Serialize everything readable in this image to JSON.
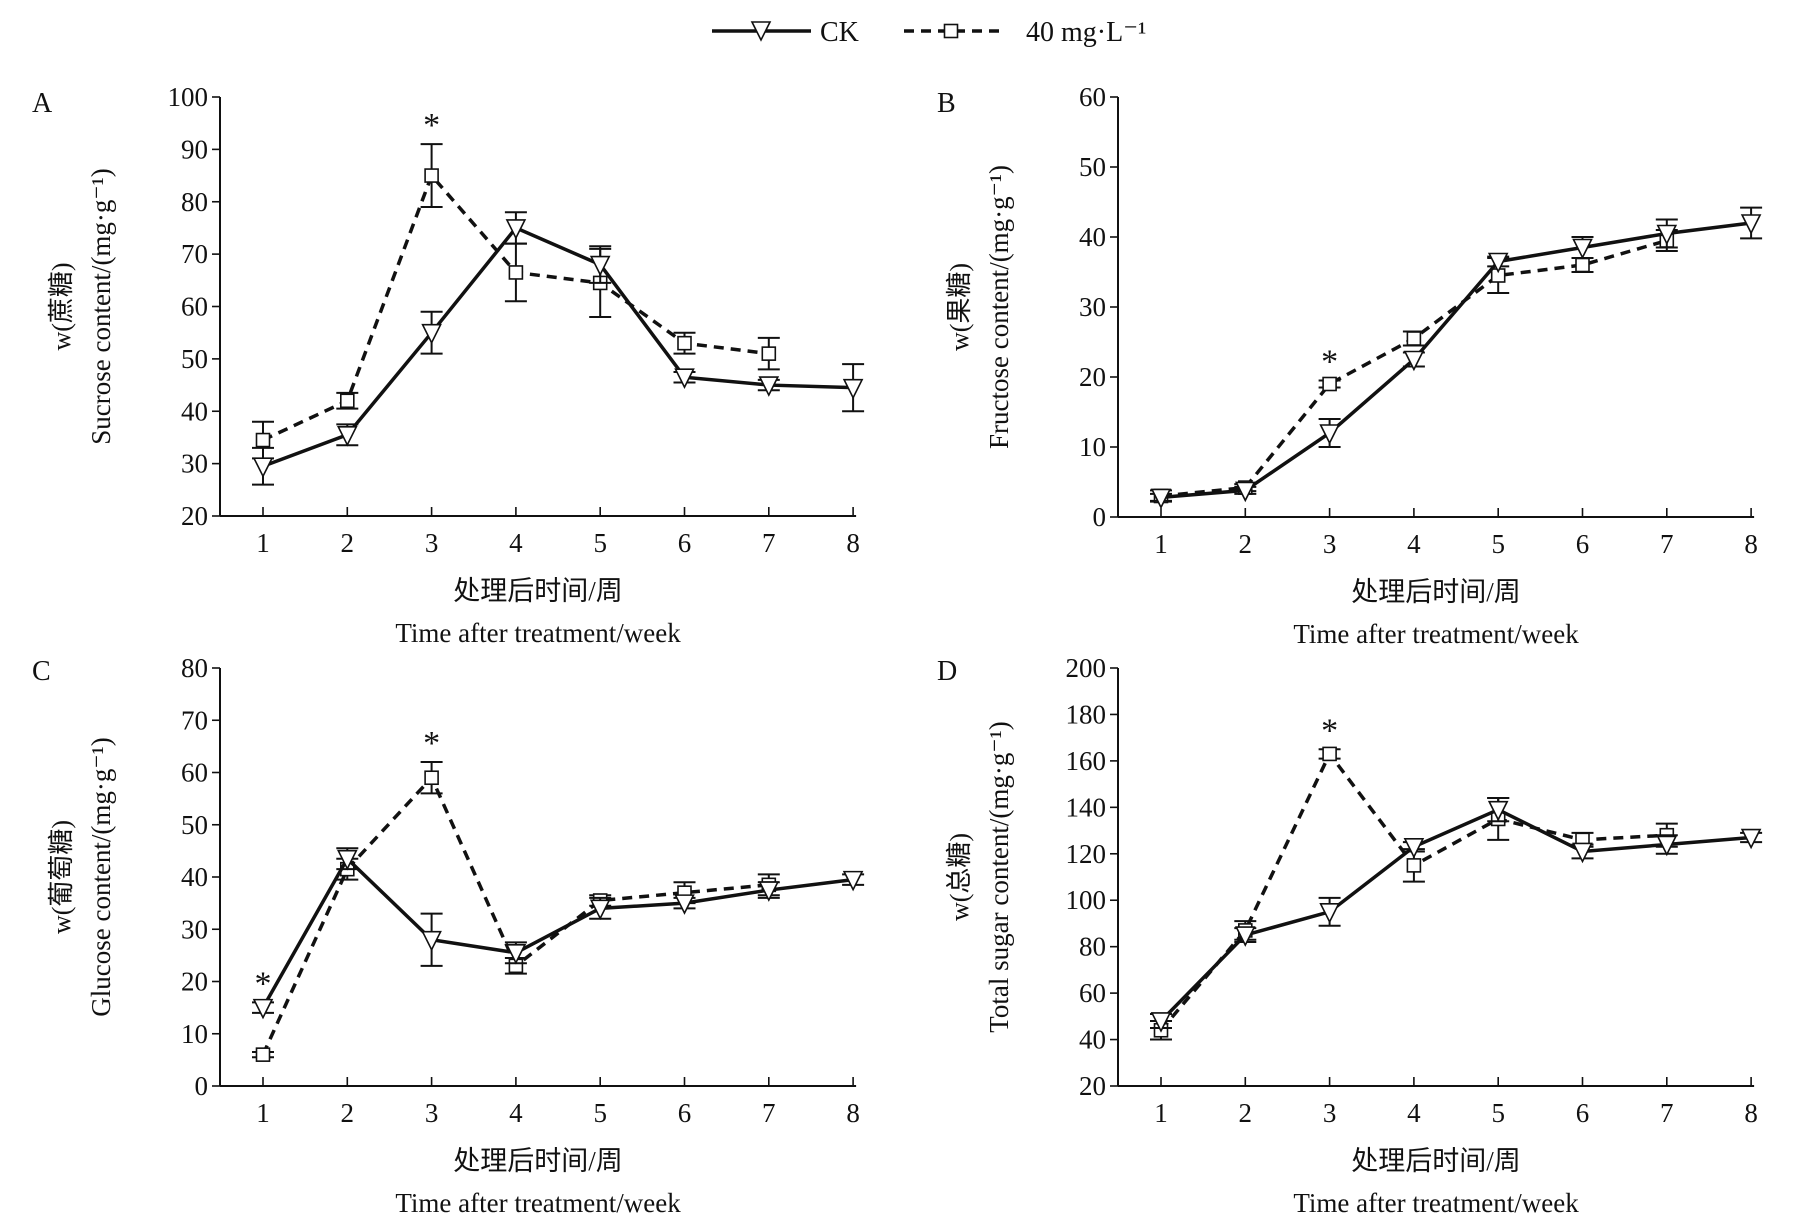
{
  "legend": {
    "series": [
      {
        "name": "CK",
        "style": "solid",
        "marker": "triangle-down"
      },
      {
        "name": "40 mg·L⁻¹",
        "style": "dashed",
        "marker": "square"
      }
    ],
    "placement": "top-center"
  },
  "chart_data": [
    {
      "type": "line",
      "panel": "A",
      "ylabel_cn": "w(蔗糖)",
      "ylabel": "Sucrose content/(mg·g⁻¹)",
      "xlabel_cn": "处理后时间/周",
      "xlabel": "Time after treatment/week",
      "x": [
        1,
        2,
        3,
        4,
        5,
        6,
        7,
        8
      ],
      "ylim": [
        20,
        100
      ],
      "yticks": [
        20,
        30,
        40,
        50,
        60,
        70,
        80,
        90,
        100
      ],
      "significance": [
        3
      ],
      "significance_mark": "*",
      "series": [
        {
          "name": "CK",
          "values": [
            29.5,
            35.5,
            55,
            75,
            68,
            46.5,
            45,
            44.5
          ],
          "errors": [
            3.5,
            2,
            4,
            3,
            3.5,
            1,
            1,
            4.5
          ]
        },
        {
          "name": "40 mg·L⁻¹",
          "values": [
            34.5,
            42,
            85,
            66.5,
            64.5,
            53,
            51,
            null
          ],
          "errors": [
            3.5,
            1.5,
            6,
            5.5,
            6.5,
            2,
            3,
            null
          ]
        }
      ]
    },
    {
      "type": "line",
      "panel": "B",
      "ylabel_cn": "w(果糖)",
      "ylabel": "Fructose content/(mg·g⁻¹)",
      "xlabel_cn": "处理后时间/周",
      "xlabel": "Time after treatment/week",
      "x": [
        1,
        2,
        3,
        4,
        5,
        6,
        7,
        8
      ],
      "ylim": [
        0,
        60
      ],
      "yticks": [
        0,
        10,
        20,
        30,
        40,
        50,
        60
      ],
      "significance": [
        3
      ],
      "significance_mark": "*",
      "series": [
        {
          "name": "CK",
          "values": [
            2.8,
            3.8,
            12,
            22.5,
            36.5,
            38.5,
            40.5,
            42
          ],
          "errors": [
            0.5,
            0.5,
            2,
            1,
            0.7,
            1.5,
            2,
            2.2
          ]
        },
        {
          "name": "40 mg·L⁻¹",
          "values": [
            3,
            4.2,
            19,
            25.5,
            34.5,
            36,
            39.5,
            null
          ],
          "errors": [
            0.8,
            0.5,
            0.5,
            1,
            2.5,
            1,
            1.5,
            null
          ]
        }
      ]
    },
    {
      "type": "line",
      "panel": "C",
      "ylabel_cn": "w(葡萄糖)",
      "ylabel": "Glucose content/(mg·g⁻¹)",
      "xlabel_cn": "处理后时间/周",
      "xlabel": "Time after treatment/week",
      "x": [
        1,
        2,
        3,
        4,
        5,
        6,
        7,
        8
      ],
      "ylim": [
        0,
        80
      ],
      "yticks": [
        0,
        10,
        20,
        30,
        40,
        50,
        60,
        70,
        80
      ],
      "significance": [
        1,
        3
      ],
      "significance_mark": "*",
      "series": [
        {
          "name": "CK",
          "values": [
            15,
            43.5,
            28,
            25.5,
            34,
            35,
            37.5,
            39.5
          ],
          "errors": [
            1,
            2,
            5,
            2,
            2,
            1,
            1.5,
            1
          ]
        },
        {
          "name": "40 mg·L⁻¹",
          "values": [
            6,
            41.5,
            59,
            23,
            35.5,
            37,
            38.5,
            null
          ],
          "errors": [
            0.5,
            2,
            3,
            1.5,
            1,
            2,
            2,
            null
          ]
        }
      ]
    },
    {
      "type": "line",
      "panel": "D",
      "ylabel_cn": "w(总糖)",
      "ylabel": "Total sugar content/(mg·g⁻¹)",
      "xlabel_cn": "处理后时间/周",
      "xlabel": "Time after treatment/week",
      "x": [
        1,
        2,
        3,
        4,
        5,
        6,
        7,
        8
      ],
      "ylim": [
        20,
        200
      ],
      "yticks": [
        20,
        40,
        60,
        80,
        100,
        120,
        140,
        160,
        180,
        200
      ],
      "significance": [
        3
      ],
      "significance_mark": "*",
      "series": [
        {
          "name": "CK",
          "values": [
            48,
            85,
            95,
            123,
            139,
            121,
            124,
            127
          ],
          "errors": [
            3,
            3,
            6,
            2,
            5,
            3,
            4,
            2
          ]
        },
        {
          "name": "40 mg·L⁻¹",
          "values": [
            44,
            87,
            163,
            115,
            135,
            126,
            128,
            null
          ],
          "errors": [
            4,
            4,
            2,
            7,
            9,
            3,
            5,
            null
          ]
        }
      ]
    }
  ]
}
